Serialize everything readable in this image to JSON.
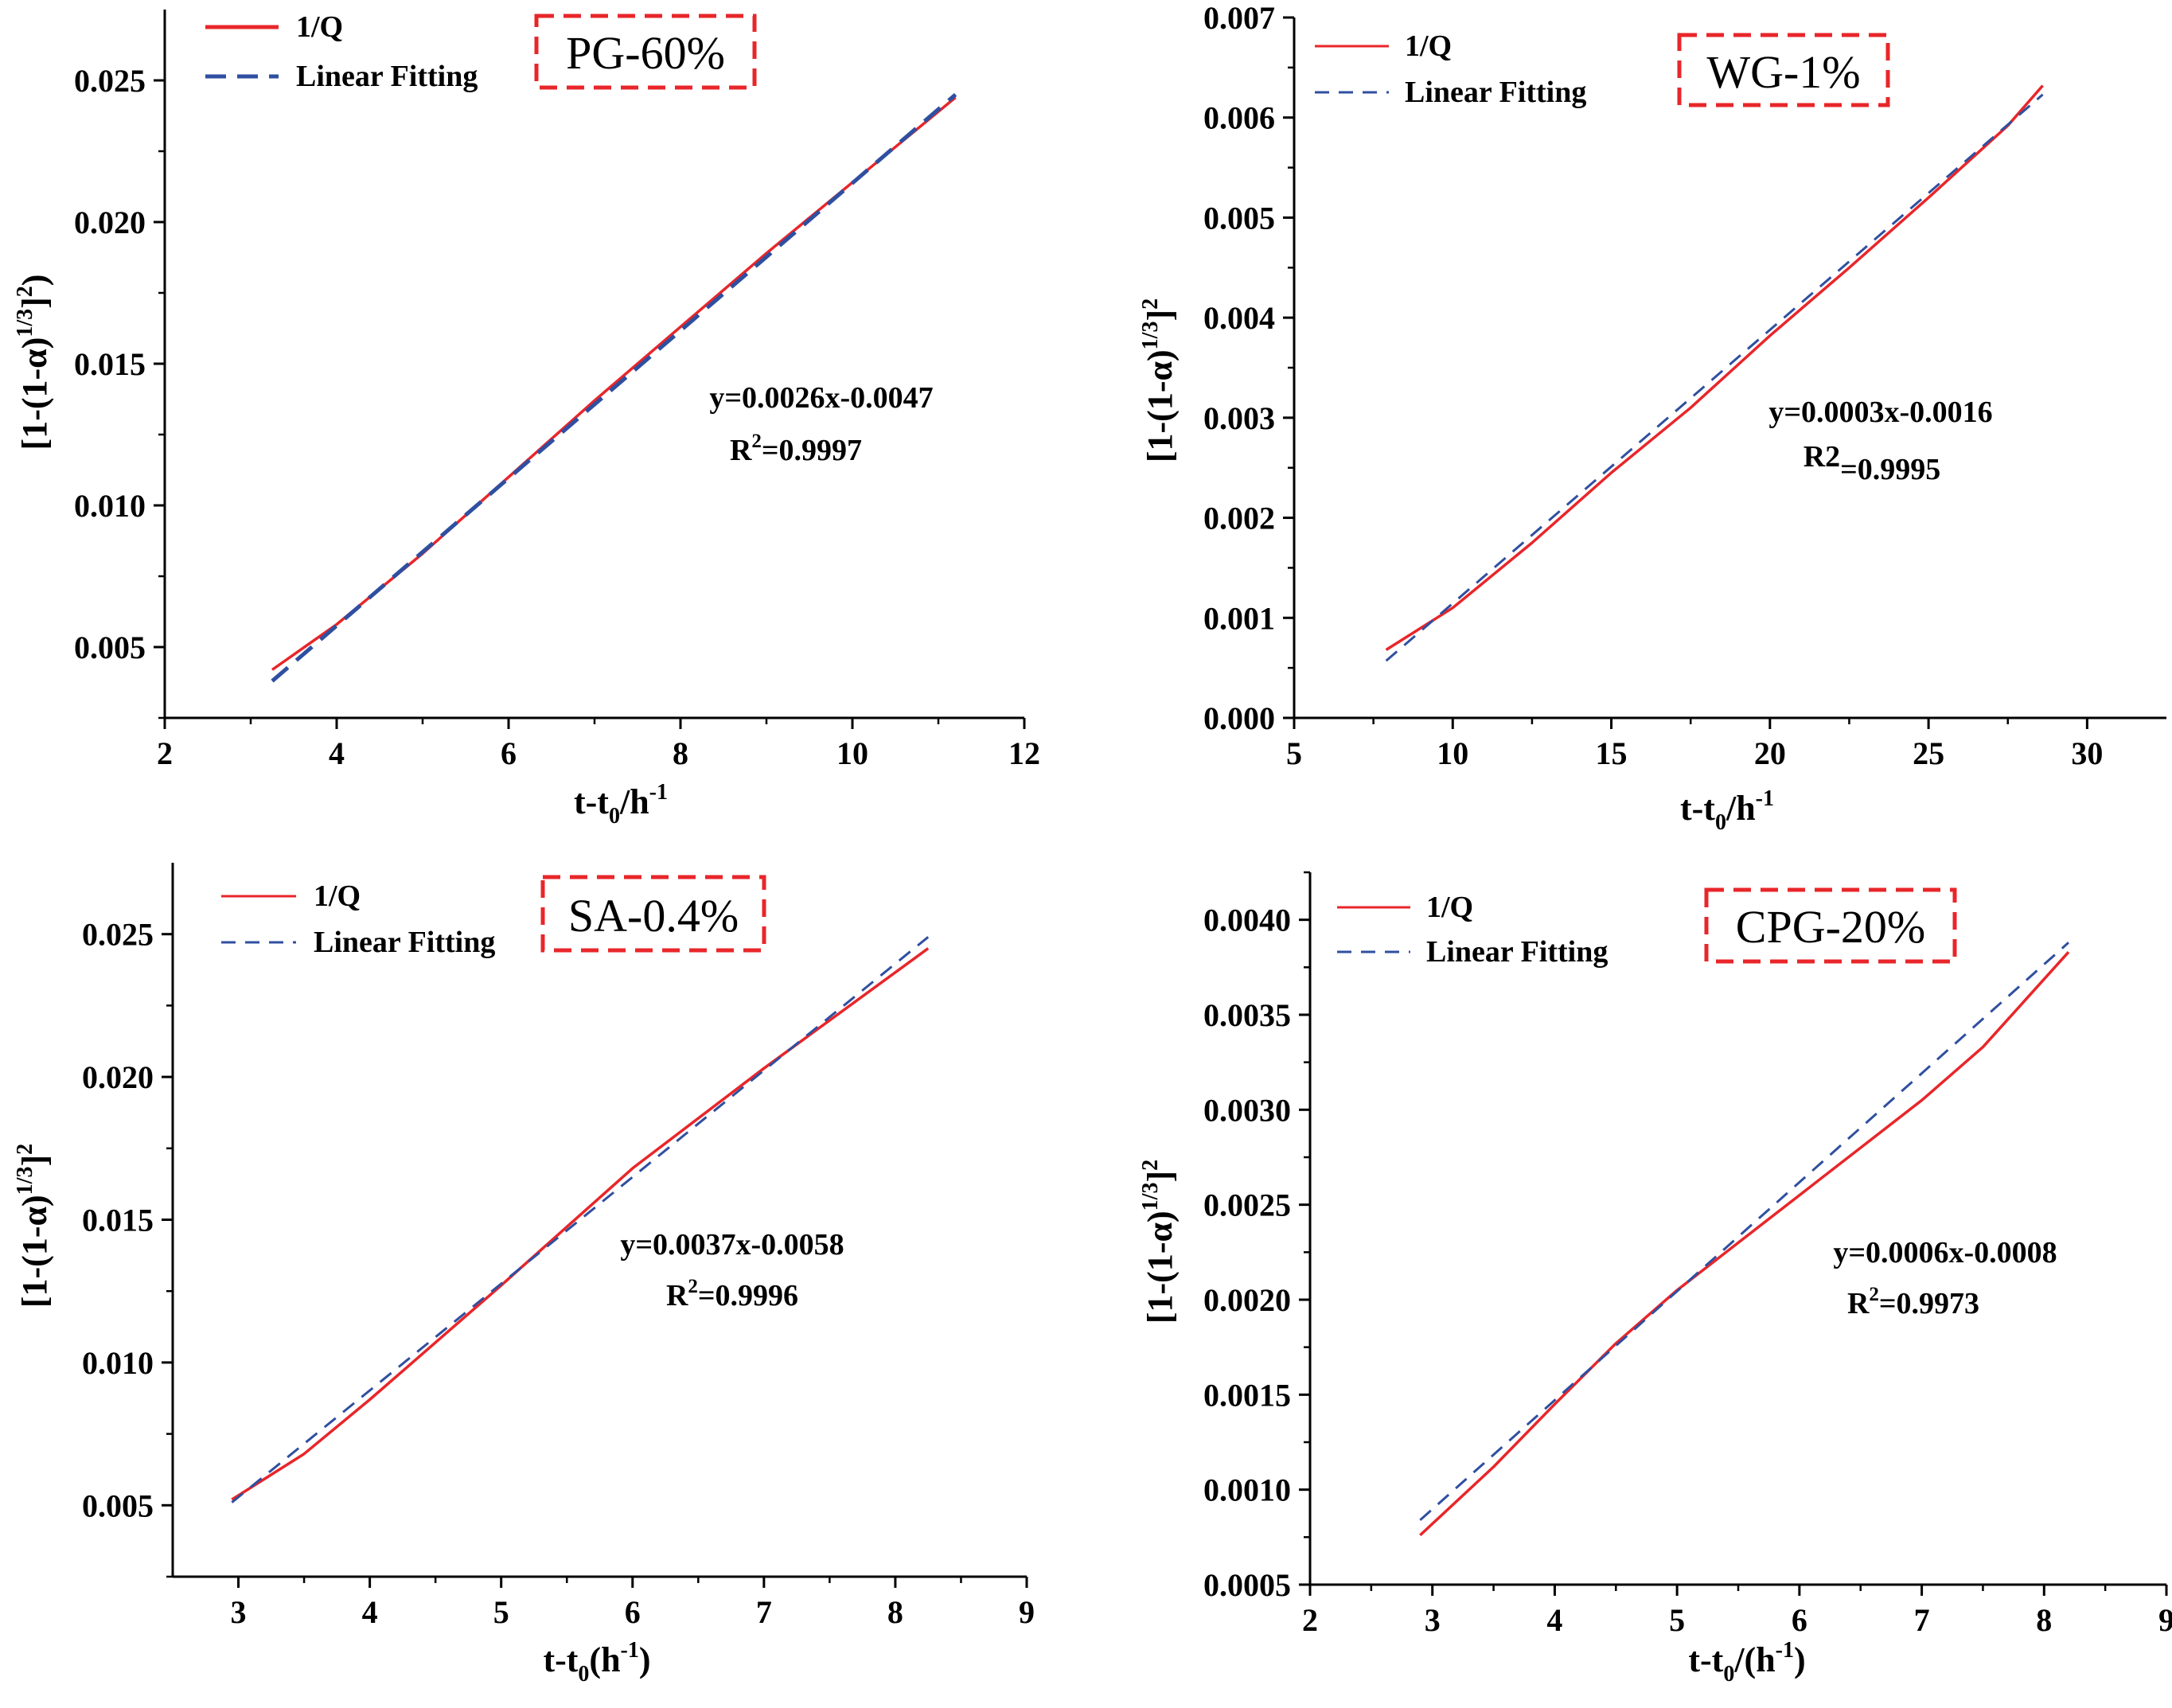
{
  "figure": {
    "panels": [
      {
        "label": "PG-60%",
        "equation": "y=0.0026x-0.0047",
        "r2_prefix": "R",
        "r2_sup": "2",
        "r2_suffix": "=0.9997",
        "ylabel_main": "[1-(1-α)",
        "ylabel_sup": "1/3",
        "ylabel_mid": "]",
        "ylabel_tail_sup": "2",
        "ylabel_end": ")",
        "xlabel_main": "t-t",
        "xlabel_sub": "0",
        "xlabel_mid": "/h",
        "xlabel_sup": "-1",
        "xlabel_end": "",
        "legend": [
          "1/Q",
          "Linear Fitting"
        ],
        "line_width_fit": 5
      },
      {
        "label": "WG-1%",
        "equation": "y=0.0003x-0.0016",
        "r2_prefix": "R2",
        "r2_sup": "",
        "r2_suffix": "=0.9995",
        "ylabel_main": "[1-(1-α)",
        "ylabel_sup": "1/3",
        "ylabel_mid": "]",
        "ylabel_tail_sup": "2",
        "ylabel_end": "",
        "xlabel_main": "t-t",
        "xlabel_sub": "0",
        "xlabel_mid": "/h",
        "xlabel_sup": "-1",
        "xlabel_end": "",
        "legend": [
          "1/Q",
          "Linear Fitting"
        ],
        "line_width_fit": 3
      },
      {
        "label": "SA-0.4%",
        "equation": "y=0.0037x-0.0058",
        "r2_prefix": "R",
        "r2_sup": "2",
        "r2_suffix": "=0.9996",
        "ylabel_main": "[1-(1-α)",
        "ylabel_sup": "1/3",
        "ylabel_mid": "]",
        "ylabel_tail_sup": "2",
        "ylabel_end": "",
        "xlabel_main": "t-t",
        "xlabel_sub": "0",
        "xlabel_mid": "(h",
        "xlabel_sup": "-1",
        "xlabel_end": ")",
        "legend": [
          "1/Q",
          "Linear Fitting"
        ],
        "line_width_fit": 3
      },
      {
        "label": "CPG-20%",
        "equation": "y=0.0006x-0.0008",
        "r2_prefix": "R",
        "r2_sup": "2",
        "r2_suffix": "=0.9973",
        "ylabel_main": "[1-(1-α)",
        "ylabel_sup": "1/3",
        "ylabel_mid": "]",
        "ylabel_tail_sup": "2",
        "ylabel_end": "",
        "xlabel_main": "t-t",
        "xlabel_sub": "0",
        "xlabel_mid": "/(h",
        "xlabel_sup": "-1",
        "xlabel_end": ")",
        "legend": [
          "1/Q",
          "Linear Fitting"
        ],
        "line_width_fit": 3
      }
    ]
  },
  "colors": {
    "data_line": "#e8262a",
    "fit_line": "#2f4fa0",
    "label_box": "#e8262a",
    "axis": "#000000"
  },
  "chart_data": [
    {
      "type": "line",
      "title": "PG-60%",
      "xlabel": "t-t0/h-1",
      "ylabel": "[1-(1-α)1/3]2)",
      "xlim": [
        2,
        12
      ],
      "ylim": [
        0.0025,
        0.0275
      ],
      "xticks": [
        2,
        4,
        6,
        8,
        10,
        12
      ],
      "xtick_labels": [
        "2",
        "4",
        "6",
        "8",
        "10",
        "12"
      ],
      "yticks": [
        0.005,
        0.01,
        0.015,
        0.02,
        0.025
      ],
      "ytick_labels": [
        "0.005",
        "0.010",
        "0.015",
        "0.020",
        "0.025"
      ],
      "legend_position": "top-left",
      "series": [
        {
          "name": "1/Q",
          "style": "solid",
          "x": [
            3.25,
            4.0,
            5.0,
            6.0,
            7.0,
            8.0,
            9.0,
            10.0,
            11.2
          ],
          "y": [
            0.0042,
            0.0058,
            0.0083,
            0.011,
            0.0137,
            0.0163,
            0.0189,
            0.0214,
            0.0244
          ]
        },
        {
          "name": "Linear Fitting",
          "style": "dashed",
          "x": [
            3.25,
            11.2
          ],
          "y": [
            0.0038,
            0.0245
          ]
        }
      ]
    },
    {
      "type": "line",
      "title": "WG-1%",
      "xlabel": "t-t0/h-1",
      "ylabel": "[1-(1-α)1/3]2",
      "xlim": [
        5,
        32.5
      ],
      "ylim": [
        0,
        0.007
      ],
      "xticks": [
        5,
        10,
        15,
        20,
        25,
        30
      ],
      "xtick_labels": [
        "5",
        "10",
        "15",
        "20",
        "25",
        "30"
      ],
      "yticks": [
        0,
        0.001,
        0.002,
        0.003,
        0.004,
        0.005,
        0.006,
        0.007
      ],
      "ytick_labels": [
        "0.000",
        "0.001",
        "0.002",
        "0.003",
        "0.004",
        "0.005",
        "0.006",
        "0.007"
      ],
      "legend_position": "top-left",
      "series": [
        {
          "name": "1/Q",
          "style": "solid",
          "x": [
            7.9,
            10,
            12.5,
            15,
            17.5,
            20,
            22.5,
            25,
            27.5,
            28.6
          ],
          "y": [
            0.00068,
            0.0011,
            0.00175,
            0.00245,
            0.0031,
            0.00382,
            0.0045,
            0.0052,
            0.00592,
            0.00632
          ]
        },
        {
          "name": "Linear Fitting",
          "style": "dashed",
          "x": [
            7.9,
            28.6
          ],
          "y": [
            0.00057,
            0.00623
          ]
        }
      ]
    },
    {
      "type": "line",
      "title": "SA-0.4%",
      "xlabel": "t-t0(h-1)",
      "ylabel": "[1-(1-α)1/3]2",
      "xlim": [
        2.5,
        9
      ],
      "ylim": [
        0.0025,
        0.0275
      ],
      "xticks": [
        3,
        4,
        5,
        6,
        7,
        8,
        9
      ],
      "xtick_labels": [
        "3",
        "4",
        "5",
        "6",
        "7",
        "8",
        "9"
      ],
      "yticks": [
        0.005,
        0.01,
        0.015,
        0.02,
        0.025
      ],
      "ytick_labels": [
        "0.005",
        "0.010",
        "0.015",
        "0.020",
        "0.025"
      ],
      "legend_position": "top-left",
      "series": [
        {
          "name": "1/Q",
          "style": "solid",
          "x": [
            2.95,
            3.5,
            4.0,
            5.0,
            6.0,
            7.0,
            8.25
          ],
          "y": [
            0.0052,
            0.0068,
            0.0087,
            0.0127,
            0.0168,
            0.0203,
            0.0245
          ]
        },
        {
          "name": "Linear Fitting",
          "style": "dashed",
          "x": [
            2.95,
            8.25
          ],
          "y": [
            0.0051,
            0.0249
          ]
        }
      ]
    },
    {
      "type": "line",
      "title": "CPG-20%",
      "xlabel": "t-t0/(h-1)",
      "ylabel": "[1-(1-α)1/3]2",
      "xlim": [
        2,
        9
      ],
      "ylim": [
        0.0005,
        0.00425
      ],
      "xticks": [
        2,
        3,
        4,
        5,
        6,
        7,
        8,
        9
      ],
      "xtick_labels": [
        "2",
        "3",
        "4",
        "5",
        "6",
        "7",
        "8",
        "9"
      ],
      "yticks": [
        0.0005,
        0.001,
        0.0015,
        0.002,
        0.0025,
        0.003,
        0.0035,
        0.004
      ],
      "ytick_labels": [
        "0.0005",
        "0.0010",
        "0.0015",
        "0.0020",
        "0.0025",
        "0.0030",
        "0.0035",
        "0.0040"
      ],
      "legend_position": "top-left",
      "series": [
        {
          "name": "1/Q",
          "style": "solid",
          "x": [
            2.9,
            3.5,
            4.0,
            4.5,
            5.0,
            5.5,
            6.0,
            6.5,
            7.0,
            7.5,
            8.2
          ],
          "y": [
            0.00076,
            0.00112,
            0.00145,
            0.00177,
            0.00205,
            0.0023,
            0.00255,
            0.0028,
            0.00305,
            0.00333,
            0.00383
          ]
        },
        {
          "name": "Linear Fitting",
          "style": "dashed",
          "x": [
            2.9,
            8.2
          ],
          "y": [
            0.00084,
            0.00388
          ]
        }
      ]
    }
  ]
}
